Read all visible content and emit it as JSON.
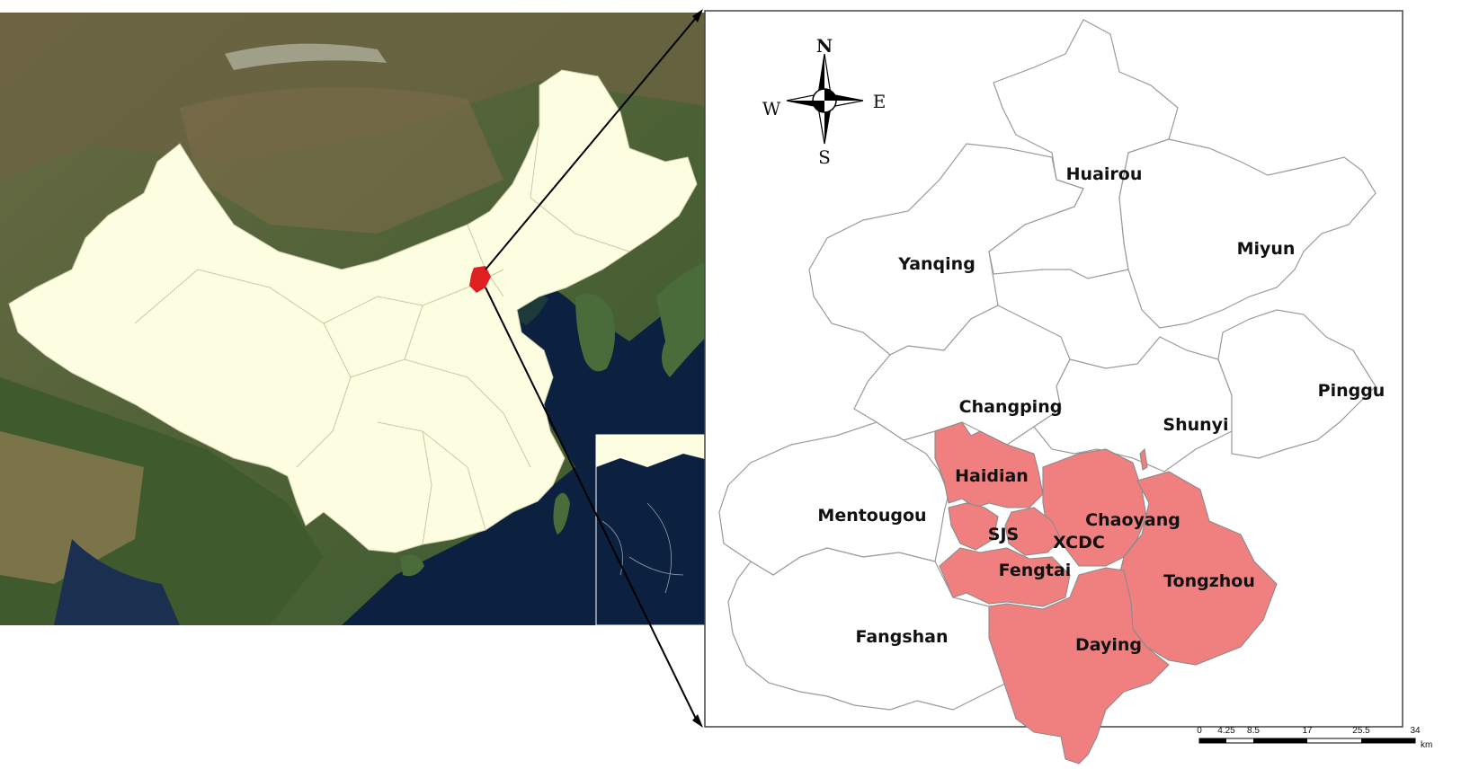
{
  "colors": {
    "china_fill": "#fdfde2",
    "beijing_marker": "#e02020",
    "urban_fill": "#f08080",
    "district_fill": "#ffffff",
    "boundary": "#9a9a9a",
    "sea": "#0b1f3a",
    "land_dark": "#3e5630",
    "land_brown": "#7d6a48"
  },
  "compass": {
    "north": "N",
    "south": "S",
    "east": "E",
    "west": "W"
  },
  "districts": {
    "huairou": "Huairou",
    "yanqing": "Yanqing",
    "miyun": "Miyun",
    "changping": "Changping",
    "shunyi": "Shunyi",
    "pinggu": "Pinggu",
    "mentougou": "Mentougou",
    "haidian": "Haidian",
    "chaoyang": "Chaoyang",
    "sjs": "SJS",
    "xcdc": "XCDC",
    "fengtai": "Fengtai",
    "tongzhou": "Tongzhou",
    "fangshan": "Fangshan",
    "daying": "Daying"
  },
  "scale_bar": {
    "ticks": [
      "0",
      "4.25",
      "8.5",
      "17",
      "25.5",
      "34"
    ],
    "unit": "km"
  },
  "icons": {
    "compass": "compass-rose-icon"
  }
}
